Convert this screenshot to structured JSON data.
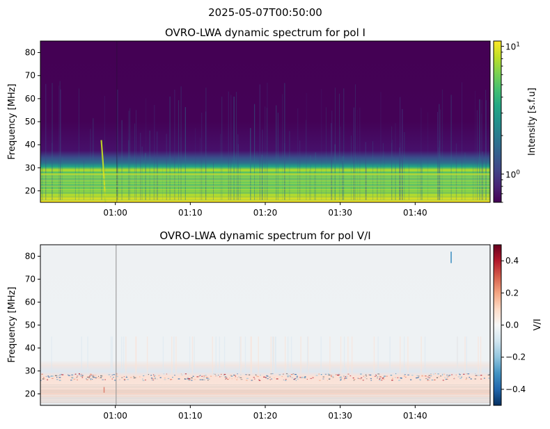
{
  "figure": {
    "suptitle": "2025-05-07T00:50:00"
  },
  "chart_data": [
    {
      "type": "heatmap",
      "title": "OVRO-LWA dynamic spectrum for pol I",
      "xlabel": "",
      "ylabel": "Frequency [MHz]",
      "x_ticks": [
        "01:00",
        "01:10",
        "01:20",
        "01:30",
        "01:40"
      ],
      "x_tick_minutes": [
        60,
        70,
        80,
        90,
        100
      ],
      "xlim_minutes": [
        50,
        110
      ],
      "y_ticks": [
        20,
        30,
        40,
        50,
        60,
        70,
        80
      ],
      "ylim": [
        15,
        85
      ],
      "colorbar": {
        "label": "Intensity [s.f.u]",
        "scale": "log",
        "colormap": "viridis",
        "range": [
          0.6,
          11
        ],
        "major_ticks": [
          1,
          10
        ],
        "major_tick_labels": [
          "10^0",
          "10^1"
        ],
        "minor_ticks": [
          0.6,
          0.7,
          0.8,
          0.9,
          2,
          3,
          4,
          5,
          6,
          7,
          8,
          9
        ]
      },
      "features": {
        "background_level": 0.6,
        "low_freq_band_mhz": [
          15,
          28
        ],
        "low_freq_band_level": 3,
        "bright_burst_minute": 58.5,
        "bright_burst_freq_mhz": [
          15,
          42
        ],
        "dark_vertical_line_minute": 60.2
      }
    },
    {
      "type": "heatmap",
      "title": "OVRO-LWA dynamic spectrum for pol V/I",
      "xlabel": "",
      "ylabel": "Frequency [MHz]",
      "x_ticks": [
        "01:00",
        "01:10",
        "01:20",
        "01:30",
        "01:40"
      ],
      "x_tick_minutes": [
        60,
        70,
        80,
        90,
        100
      ],
      "xlim_minutes": [
        50,
        110
      ],
      "y_ticks": [
        20,
        30,
        40,
        50,
        60,
        70,
        80
      ],
      "ylim": [
        15,
        85
      ],
      "colorbar": {
        "label": "V/I",
        "scale": "linear",
        "colormap": "RdBu_r",
        "range": [
          -0.5,
          0.5
        ],
        "ticks": [
          0.4,
          0.2,
          0.0,
          -0.2,
          -0.4
        ],
        "tick_labels": [
          "0.4",
          "0.2",
          "0.0",
          "−0.2",
          "−0.4"
        ]
      },
      "features": {
        "background_level": -0.02,
        "noisy_band_mhz": [
          26,
          29
        ],
        "positive_band_mhz": [
          15,
          25
        ],
        "grey_vertical_line_minute": 60.1,
        "blue_spike_minute": 104.8,
        "blue_spike_freq_mhz": [
          77,
          82
        ]
      }
    }
  ]
}
